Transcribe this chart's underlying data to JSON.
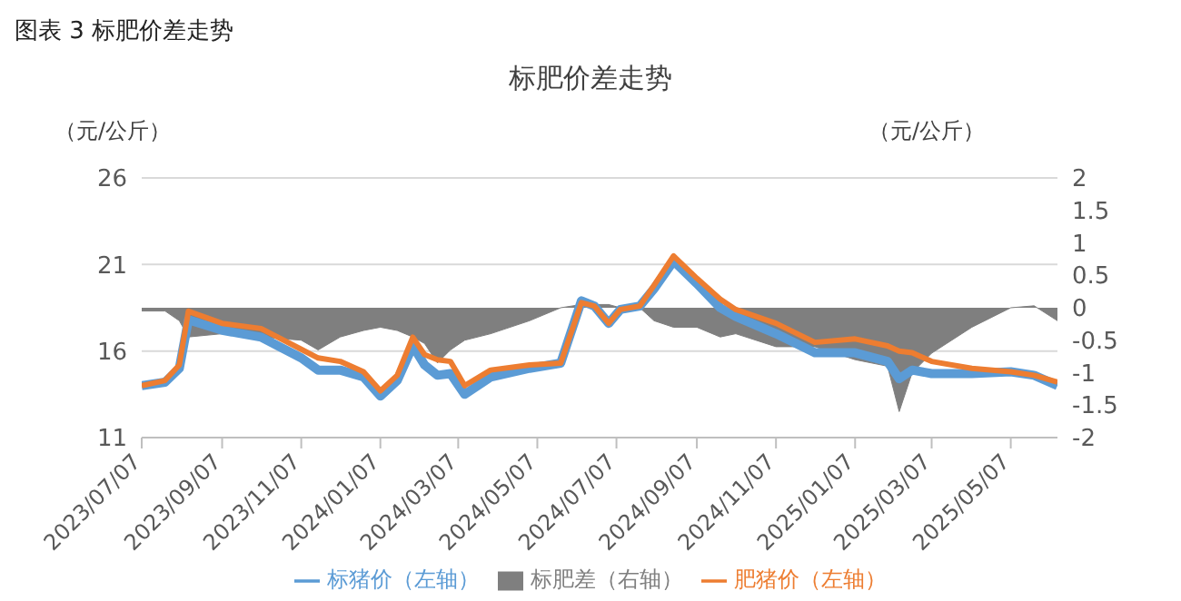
{
  "chart_data": {
    "type": "line",
    "title": "标肥价差走势",
    "ylabel": "（元/公斤）",
    "y2label": "（元/公斤）",
    "annotations": [
      "图表 3 标肥价差走势"
    ],
    "x": [
      "2023-07-07",
      "2023-07-25",
      "2023-08-05",
      "2023-08-12",
      "2023-09-07",
      "2023-10-07",
      "2023-11-07",
      "2023-11-20",
      "2023-12-07",
      "2023-12-25",
      "2024-01-07",
      "2024-01-20",
      "2024-02-01",
      "2024-02-10",
      "2024-02-20",
      "2024-03-01",
      "2024-03-12",
      "2024-04-01",
      "2024-05-01",
      "2024-05-25",
      "2024-06-10",
      "2024-06-20",
      "2024-07-01",
      "2024-07-10",
      "2024-07-25",
      "2024-08-05",
      "2024-08-20",
      "2024-09-07",
      "2024-09-25",
      "2024-10-07",
      "2024-11-07",
      "2024-12-07",
      "2025-01-07",
      "2025-02-01",
      "2025-02-10",
      "2025-02-20",
      "2025-03-07",
      "2025-04-07",
      "2025-05-07",
      "2025-05-25",
      "2025-06-12"
    ],
    "series": [
      {
        "name": "标肥差（右轴）",
        "type": "area",
        "axis": "y2",
        "color": "#7f7f7f",
        "values": [
          -0.05,
          -0.05,
          -0.2,
          -0.45,
          -0.4,
          -0.45,
          -0.5,
          -0.65,
          -0.45,
          -0.35,
          -0.3,
          -0.35,
          -0.45,
          -0.55,
          -0.85,
          -0.65,
          -0.5,
          -0.4,
          -0.2,
          0,
          0.05,
          0.05,
          0.05,
          0,
          0,
          -0.2,
          -0.3,
          -0.3,
          -0.45,
          -0.4,
          -0.6,
          -0.6,
          -0.8,
          -0.9,
          -1.6,
          -1.0,
          -0.7,
          -0.3,
          0,
          0.03,
          -0.2
        ]
      },
      {
        "name": "标猪价（左轴）",
        "color": "#5b9bd5",
        "values": [
          14.0,
          14.2,
          15.0,
          17.8,
          17.2,
          16.8,
          15.6,
          14.9,
          14.9,
          14.5,
          13.4,
          14.3,
          16.3,
          15.2,
          14.6,
          14.7,
          13.5,
          14.5,
          15.0,
          15.3,
          18.9,
          18.6,
          17.6,
          18.4,
          18.6,
          19.6,
          21.2,
          19.9,
          18.5,
          18.0,
          17.0,
          15.9,
          15.9,
          15.4,
          14.4,
          14.9,
          14.7,
          14.7,
          14.8,
          14.6,
          14.0
        ]
      },
      {
        "name": "肥猪价（左轴）",
        "color": "#ed7d31",
        "values": [
          14.0,
          14.3,
          15.2,
          18.3,
          17.6,
          17.3,
          16.1,
          15.6,
          15.4,
          14.8,
          13.7,
          14.6,
          16.8,
          15.8,
          15.5,
          15.4,
          14.0,
          14.9,
          15.2,
          15.3,
          18.8,
          18.6,
          17.6,
          18.4,
          18.6,
          19.8,
          21.5,
          20.2,
          19.0,
          18.4,
          17.6,
          16.5,
          16.7,
          16.3,
          16.0,
          15.9,
          15.4,
          15.0,
          14.8,
          14.6,
          14.2
        ]
      }
    ],
    "xlim": [
      "2023-07-07",
      "2025-06-12"
    ],
    "xticks": [
      {
        "value": "2023-07-07",
        "label": "2023/07/07"
      },
      {
        "value": "2023-09-07",
        "label": "2023/09/07"
      },
      {
        "value": "2023-11-07",
        "label": "2023/11/07"
      },
      {
        "value": "2024-01-07",
        "label": "2024/01/07"
      },
      {
        "value": "2024-03-07",
        "label": "2024/03/07"
      },
      {
        "value": "2024-05-07",
        "label": "2024/05/07"
      },
      {
        "value": "2024-07-07",
        "label": "2024/07/07"
      },
      {
        "value": "2024-09-07",
        "label": "2024/09/07"
      },
      {
        "value": "2024-11-07",
        "label": "2024/11/07"
      },
      {
        "value": "2025-01-07",
        "label": "2025/01/07"
      },
      {
        "value": "2025-03-07",
        "label": "2025/03/07"
      },
      {
        "value": "2025-05-07",
        "label": "2025/05/07"
      }
    ],
    "ylim": [
      11,
      26
    ],
    "yticks": [
      11,
      16,
      21,
      26
    ],
    "y2lim": [
      -2,
      2
    ],
    "y2ticks": [
      -2,
      -1.5,
      -1,
      -0.5,
      0,
      0.5,
      1,
      1.5,
      2
    ],
    "grid": "y",
    "legend": "bottom",
    "line_style": "solid"
  }
}
